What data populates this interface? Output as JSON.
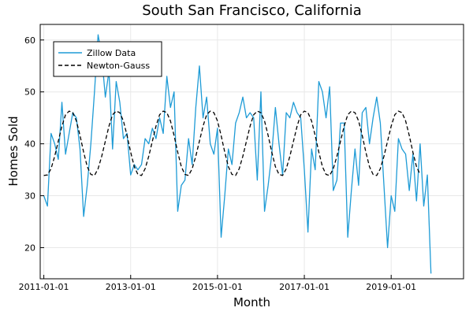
{
  "chart_data": {
    "type": "line",
    "title": "South San Francisco, California",
    "xlabel": "Month",
    "ylabel": "Homes Sold",
    "xlim": [
      "2010-12-01",
      "2020-09-01"
    ],
    "ylim": [
      14,
      63
    ],
    "x_ticks": [
      "2011-01-01",
      "2013-01-01",
      "2015-01-01",
      "2017-01-01",
      "2019-01-01"
    ],
    "y_ticks": [
      20,
      30,
      40,
      50,
      60
    ],
    "grid": true,
    "legend": {
      "placement": "top-left"
    },
    "x_start": "2011-01-01",
    "x_step": "1 month",
    "series": [
      {
        "name": "Zillow Data",
        "color": "#1e9bd6",
        "style": "solid",
        "values": [
          30,
          28,
          42,
          40,
          37,
          48,
          38,
          42,
          46,
          45,
          39,
          26,
          32,
          40,
          50,
          61,
          57,
          49,
          54,
          39,
          52,
          48,
          41,
          42,
          34,
          36,
          35,
          36,
          41,
          40,
          43,
          41,
          45,
          42,
          53,
          47,
          50,
          27,
          32,
          33,
          41,
          36,
          47,
          55,
          45,
          49,
          40,
          38,
          43,
          22,
          30,
          39,
          36,
          44,
          46,
          49,
          45,
          46,
          45,
          33,
          50,
          27,
          32,
          38,
          47,
          40,
          34,
          46,
          45,
          48,
          46,
          45,
          35,
          23,
          39,
          35,
          52,
          50,
          45,
          51,
          31,
          33,
          44,
          44,
          22,
          31,
          39,
          32,
          46,
          47,
          40,
          45,
          49,
          44,
          32,
          20,
          30,
          27,
          41,
          39,
          38,
          31,
          38,
          29,
          40,
          28,
          34,
          15
        ]
      },
      {
        "name": "Newton-Gauss",
        "color": "#000000",
        "style": "dashed",
        "values": [
          33.9,
          34.0,
          35.2,
          37.6,
          40.5,
          43.4,
          45.6,
          46.3,
          46.0,
          44.4,
          41.6,
          38.4,
          35.6,
          34.1,
          33.9,
          35.2,
          37.6,
          40.5,
          43.4,
          45.6,
          46.3,
          46.0,
          44.4,
          41.6,
          38.4,
          35.6,
          34.1,
          33.9,
          35.2,
          37.6,
          40.5,
          43.4,
          45.6,
          46.3,
          46.0,
          44.4,
          41.6,
          38.4,
          35.6,
          34.1,
          33.9,
          35.2,
          37.6,
          40.5,
          43.4,
          45.6,
          46.3,
          46.0,
          44.4,
          41.6,
          38.4,
          35.6,
          34.1,
          33.9,
          35.2,
          37.6,
          40.5,
          43.4,
          45.6,
          46.3,
          46.0,
          44.4,
          41.6,
          38.4,
          35.6,
          34.1,
          33.9,
          35.2,
          37.6,
          40.5,
          43.4,
          45.6,
          46.3,
          46.0,
          44.4,
          41.6,
          38.4,
          35.6,
          34.1,
          33.9,
          35.2,
          37.6,
          40.5,
          43.4,
          45.6,
          46.3,
          46.0,
          44.4,
          41.6,
          38.4,
          35.6,
          34.1,
          33.9,
          35.2,
          37.6,
          40.5,
          43.4,
          45.6,
          46.3,
          46.0,
          44.4,
          41.6,
          38.4,
          35.6,
          34.1
        ]
      }
    ]
  }
}
